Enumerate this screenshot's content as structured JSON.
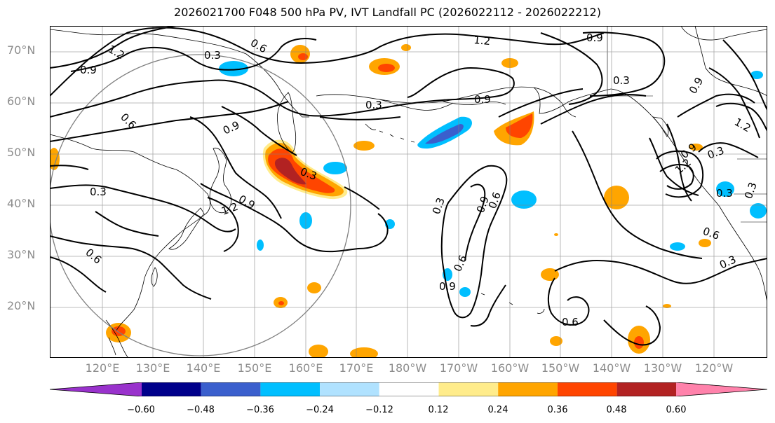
{
  "title": "2026021700 F048 500 hPa PV, IVT Landfall PC (2026022112 - 2026022212)",
  "lat_labels": [
    "70°N",
    "60°N",
    "50°N",
    "40°N",
    "30°N",
    "20°N"
  ],
  "lon_labels": [
    "120°E",
    "130°E",
    "140°E",
    "150°E",
    "160°E",
    "170°E",
    "180°W",
    "170°W",
    "160°W",
    "150°W",
    "140°W",
    "130°W",
    "120°W"
  ],
  "contour_labels": [
    "1.2",
    "0.6",
    "0.3",
    "0.9",
    "1.2",
    "0.9",
    "0.3",
    "0.9",
    "0.9",
    "0.3",
    "0.3",
    "0.6",
    "0.9",
    "0.3",
    "1.2",
    "0.3",
    "0.9",
    "1.2",
    "0.3",
    "0.3",
    "0.9",
    "0.6",
    "0.9",
    "0.6",
    "0.6",
    "0.3",
    "0.6",
    "1.2",
    "0.3",
    "0.9",
    "0.6"
  ],
  "colorbar": {
    "colors": [
      "#9932cc",
      "#00008b",
      "#3a5fcd",
      "#00bfff",
      "#b0e2ff",
      "#ffffff",
      "#ffec8b",
      "#ffa500",
      "#ff4500",
      "#b22222",
      "#ff82ab"
    ],
    "tick_labels": [
      "−0.60",
      "−0.48",
      "−0.36",
      "−0.24",
      "−0.12",
      "0.12",
      "0.24",
      "0.36",
      "0.48",
      "0.60"
    ]
  },
  "colors": {
    "land_outline": "#000000",
    "grid": "#808080",
    "circle": "#808080",
    "contour": "#000000"
  }
}
